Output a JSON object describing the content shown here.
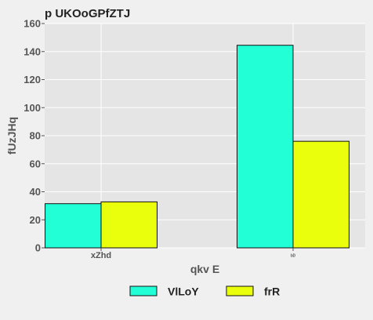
{
  "chart_data": {
    "type": "bar",
    "title": "p UKOoGPfZTJ",
    "xlabel": "qkv E",
    "ylabel": "fUzJHq",
    "categories": [
      "xZhd",
      "ᵇᴰ"
    ],
    "series": [
      {
        "name": "VlLoY",
        "values": [
          31.5,
          144.5
        ],
        "color": "#22ffd6"
      },
      {
        "name": "frR",
        "values": [
          32.8,
          76
        ],
        "color": "#eaff0c"
      }
    ],
    "ylim": [
      0,
      160
    ],
    "yticks": [
      0,
      20,
      40,
      60,
      80,
      100,
      120,
      140,
      160
    ],
    "grid": true,
    "legend_position": "bottom-center"
  },
  "colors": {
    "page_background": "#f0f0f0",
    "plot_background": "#e5e5e5",
    "grid": "#ffffff"
  }
}
